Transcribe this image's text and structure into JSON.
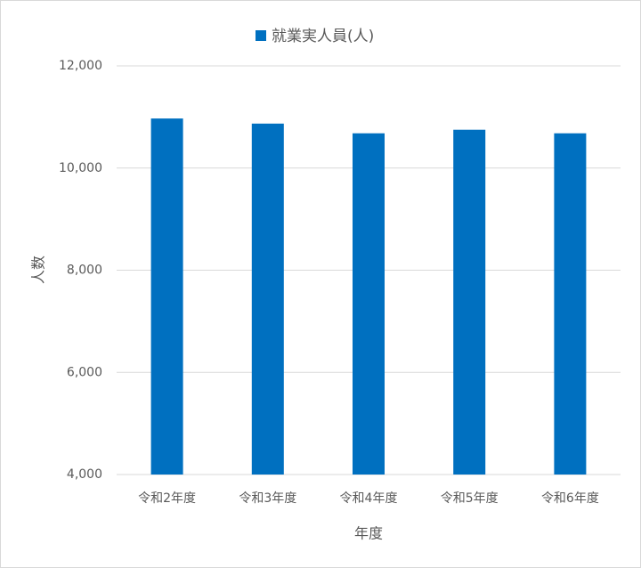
{
  "chart_data": {
    "type": "bar",
    "categories": [
      "令和2年度",
      "令和3年度",
      "令和4年度",
      "令和5年度",
      "令和6年度"
    ],
    "series": [
      {
        "name": "就業実人員(人)",
        "color": "#0070c0",
        "values": [
          10970,
          10870,
          10680,
          10750,
          10680
        ]
      }
    ],
    "x_label": "年度",
    "y_label": "人数",
    "ylim": [
      4000,
      12000
    ],
    "yticks": [
      {
        "value": 4000,
        "label": "4,000"
      },
      {
        "value": 6000,
        "label": "6,000"
      },
      {
        "value": 8000,
        "label": "8,000"
      },
      {
        "value": 10000,
        "label": "10,000"
      },
      {
        "value": 12000,
        "label": "12,000"
      }
    ],
    "grid": true,
    "legend": "top"
  }
}
